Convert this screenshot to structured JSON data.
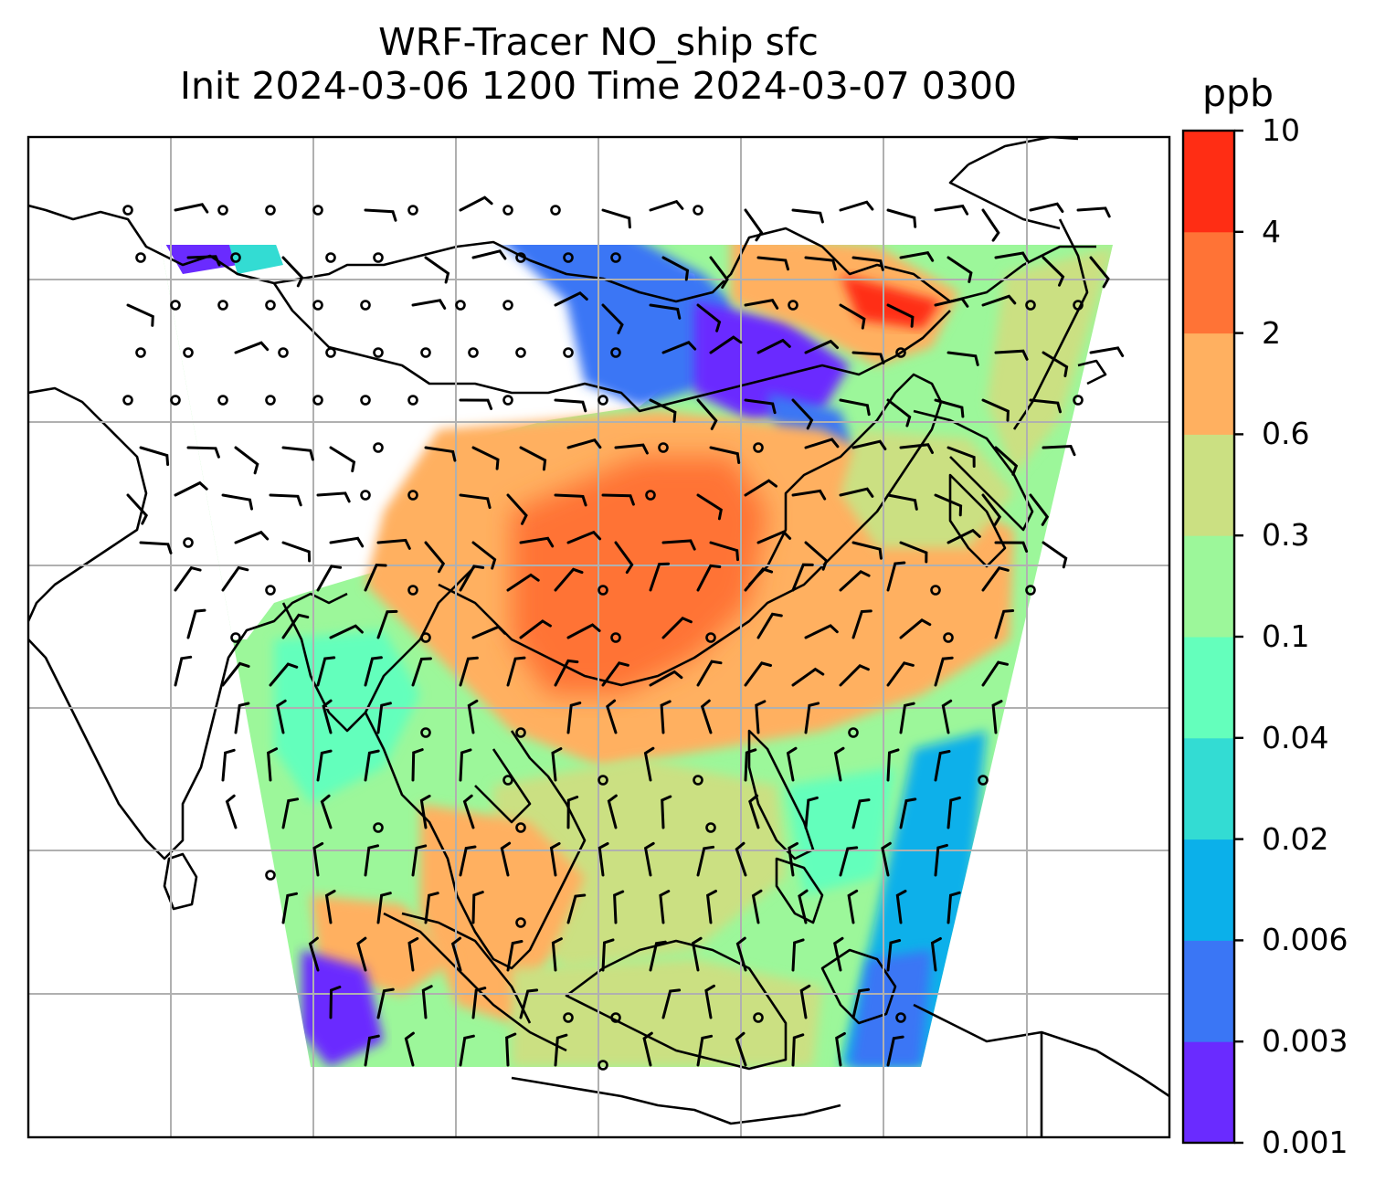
{
  "title": {
    "line1": "WRF-Tracer NO_ship sfc",
    "line2": "Init 2024-03-06 1200 Time 2024-03-07 0300"
  },
  "colorbar": {
    "unit": "ppb",
    "ticks": [
      "0.001",
      "0.003",
      "0.006",
      "0.02",
      "0.04",
      "0.1",
      "0.3",
      "0.6",
      "2",
      "4",
      "10"
    ],
    "colors": [
      "#6a2bff",
      "#3a76f5",
      "#0bb0ea",
      "#33dcd3",
      "#64ffbc",
      "#9cf79a",
      "#cbe082",
      "#ffb060",
      "#ff7336",
      "#ff2d14"
    ]
  },
  "chart_data": {
    "type": "heatmap",
    "variable": "NO_ship sfc",
    "unit": "ppb",
    "levels": [
      0.001,
      0.003,
      0.006,
      0.02,
      0.04,
      0.1,
      0.3,
      0.6,
      2,
      4,
      10
    ],
    "grid": true,
    "overlay": "wind-barbs"
  }
}
